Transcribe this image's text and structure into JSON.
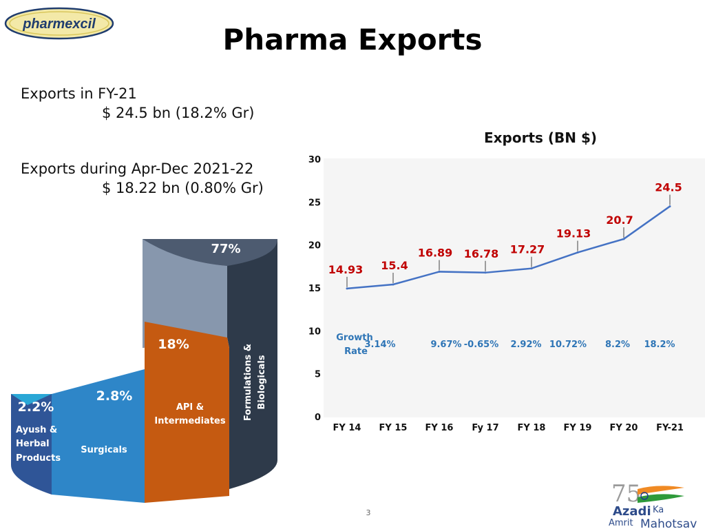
{
  "header": {
    "logo_text": "pharmexcil",
    "title": "Pharma Exports"
  },
  "left_text": {
    "line1": "Exports in FY-21",
    "line2": "$ 24.5 bn (18.2% Gr)",
    "line3": "Exports during Apr-Dec 2021-22",
    "line4": "$ 18.22 bn (0.80% Gr)"
  },
  "colors": {
    "line": "#4472c4",
    "value_label": "#c00000",
    "growth_label": "#2e75b6",
    "formulations": "#2e3a4a",
    "api": "#c55a11",
    "surgicals": "#2e86c8",
    "ayush": "#2f5597"
  },
  "chart_data": [
    {
      "type": "line",
      "title": "Exports (BN $)",
      "categories": [
        "FY 14",
        "FY 15",
        "FY 16",
        "Fy 17",
        "FY 18",
        "FY 19",
        "FY 20",
        "FY-21"
      ],
      "values": [
        14.93,
        15.4,
        16.89,
        16.78,
        17.27,
        19.13,
        20.7,
        24.5
      ],
      "value_labels": [
        "14.93",
        "15.4",
        "16.89",
        "16.78",
        "17.27",
        "19.13",
        "20.7",
        "24.5"
      ],
      "growth_label": "Growth Rate",
      "growth_labels": [
        "3.14%",
        "9.67%",
        "-0.65%",
        "2.92%",
        "10.72%",
        "8.2%",
        "18.2%"
      ],
      "y_ticks": [
        "0",
        "5",
        "10",
        "15",
        "20",
        "25",
        "30"
      ],
      "ylim": [
        0,
        30
      ],
      "grid": false
    },
    {
      "type": "pie",
      "style": "3d-cylinder",
      "segments": [
        {
          "name": "Formulations & Biologicals",
          "label": "77%",
          "value": 77
        },
        {
          "name": "API & Intermediates",
          "label": "18%",
          "value": 18
        },
        {
          "name": "Surgicals",
          "label": "2.8%",
          "value": 2.8
        },
        {
          "name": "Ayush & Herbal Products",
          "label": "2.2%",
          "value": 2.2
        }
      ]
    }
  ],
  "footer": {
    "page_number": "3",
    "azadi_line1": "Azadi",
    "azadi_ka": "Ka",
    "azadi_line2": "Amrit",
    "azadi_mahotsav": "Mahotsav"
  }
}
